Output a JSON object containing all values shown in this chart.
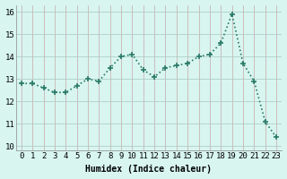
{
  "x": [
    0,
    1,
    2,
    3,
    4,
    5,
    6,
    7,
    8,
    9,
    10,
    11,
    12,
    13,
    14,
    15,
    16,
    17,
    18,
    19,
    20,
    21,
    22,
    23
  ],
  "y": [
    12.8,
    12.8,
    12.6,
    12.4,
    12.4,
    12.7,
    13.0,
    12.9,
    13.5,
    14.0,
    14.1,
    13.4,
    13.1,
    13.5,
    13.6,
    13.7,
    14.0,
    14.1,
    14.6,
    15.9,
    13.7,
    12.9,
    11.1,
    10.4
  ],
  "line_color": "#2A7A68",
  "marker": "+",
  "marker_size": 4,
  "marker_linewidth": 1.2,
  "bg_color": "#D8F5F0",
  "grid_x_color": "#C8A8A8",
  "grid_y_color": "#A8C8C0",
  "xlabel": "Humidex (Indice chaleur)",
  "ylim": [
    9.8,
    16.3
  ],
  "xlim": [
    -0.5,
    23.5
  ],
  "yticks": [
    10,
    11,
    12,
    13,
    14,
    15,
    16
  ],
  "xticks": [
    0,
    1,
    2,
    3,
    4,
    5,
    6,
    7,
    8,
    9,
    10,
    11,
    12,
    13,
    14,
    15,
    16,
    17,
    18,
    19,
    20,
    21,
    22,
    23
  ],
  "label_fontsize": 7,
  "tick_fontsize": 6.5,
  "linewidth": 1.2
}
